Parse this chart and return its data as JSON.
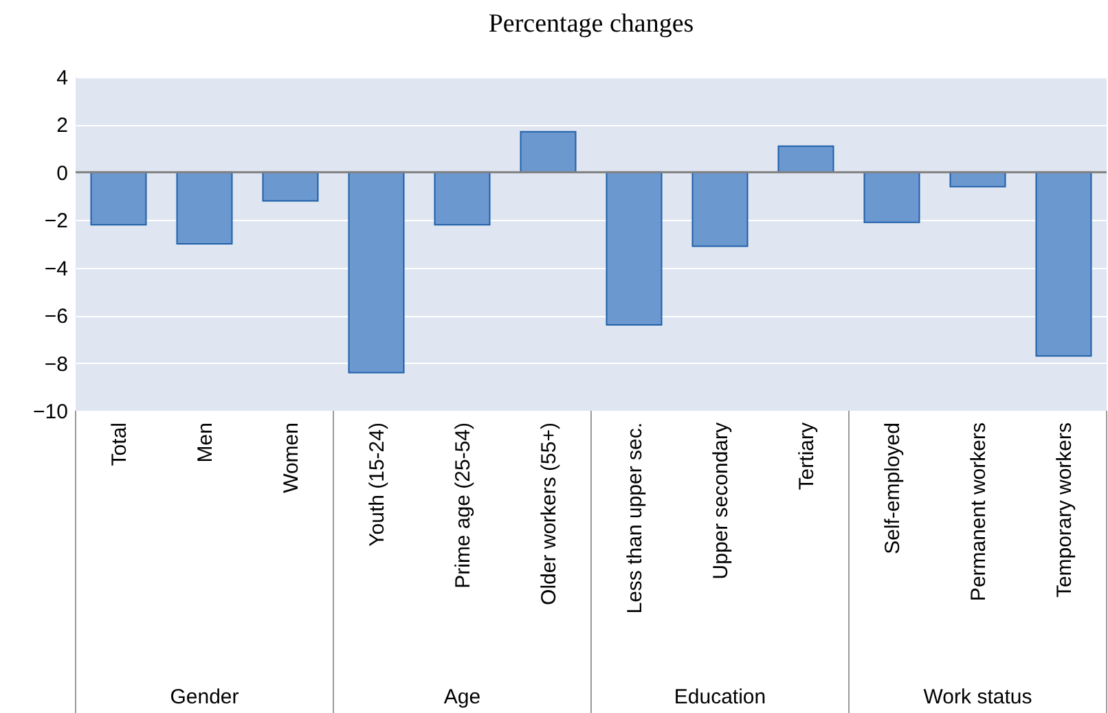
{
  "chart_data": {
    "type": "bar",
    "title": "Percentage changes",
    "categories": [
      "Total",
      "Men",
      "Women",
      "Youth (15-24)",
      "Prime age (25-54)",
      "Older workers (55+)",
      "Less than upper sec.",
      "Upper secondary",
      "Tertiary",
      "Self-employed",
      "Permanent workers",
      "Temporary workers"
    ],
    "values": [
      -2.2,
      -3.0,
      -1.2,
      -8.4,
      -2.2,
      1.7,
      -6.4,
      -3.1,
      1.1,
      -2.1,
      -0.6,
      -7.7
    ],
    "color": "#6c98d0",
    "ylim": [
      -10,
      4
    ],
    "yticks": [
      -10,
      -8,
      -6,
      -4,
      -2,
      0,
      2,
      4
    ],
    "grid": "y",
    "legend": false,
    "annotations": [
      "Gender",
      "Age",
      "Education",
      "Work status"
    ]
  }
}
